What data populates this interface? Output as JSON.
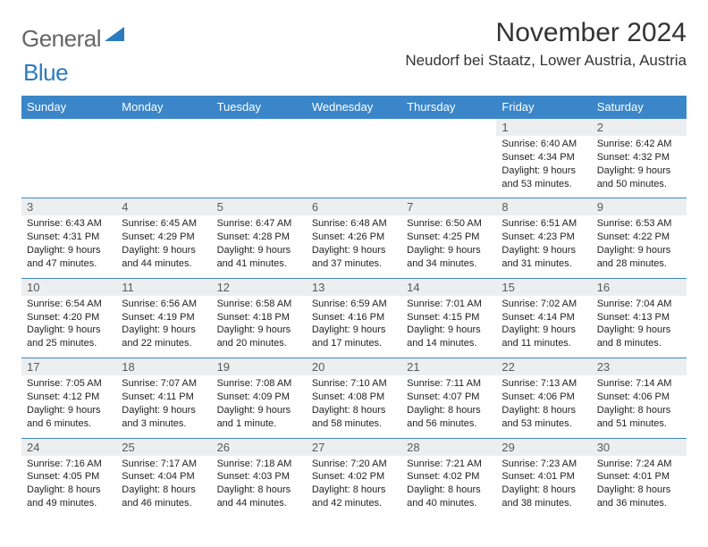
{
  "logo": {
    "text1": "General",
    "text2": "Blue"
  },
  "title": "November 2024",
  "location": "Neudorf bei Staatz, Lower Austria, Austria",
  "colors": {
    "header_bg": "#3a86c8",
    "header_text": "#ffffff",
    "daynum_bg": "#eceef0",
    "daynum_text": "#5a5a5a",
    "border": "#3a86c8",
    "logo_gray": "#666666",
    "logo_blue": "#2a7bbf"
  },
  "day_headers": [
    "Sunday",
    "Monday",
    "Tuesday",
    "Wednesday",
    "Thursday",
    "Friday",
    "Saturday"
  ],
  "weeks": [
    {
      "nums": [
        "",
        "",
        "",
        "",
        "",
        "1",
        "2"
      ],
      "cells": [
        [],
        [],
        [],
        [],
        [],
        [
          "Sunrise: 6:40 AM",
          "Sunset: 4:34 PM",
          "Daylight: 9 hours",
          "and 53 minutes."
        ],
        [
          "Sunrise: 6:42 AM",
          "Sunset: 4:32 PM",
          "Daylight: 9 hours",
          "and 50 minutes."
        ]
      ]
    },
    {
      "nums": [
        "3",
        "4",
        "5",
        "6",
        "7",
        "8",
        "9"
      ],
      "cells": [
        [
          "Sunrise: 6:43 AM",
          "Sunset: 4:31 PM",
          "Daylight: 9 hours",
          "and 47 minutes."
        ],
        [
          "Sunrise: 6:45 AM",
          "Sunset: 4:29 PM",
          "Daylight: 9 hours",
          "and 44 minutes."
        ],
        [
          "Sunrise: 6:47 AM",
          "Sunset: 4:28 PM",
          "Daylight: 9 hours",
          "and 41 minutes."
        ],
        [
          "Sunrise: 6:48 AM",
          "Sunset: 4:26 PM",
          "Daylight: 9 hours",
          "and 37 minutes."
        ],
        [
          "Sunrise: 6:50 AM",
          "Sunset: 4:25 PM",
          "Daylight: 9 hours",
          "and 34 minutes."
        ],
        [
          "Sunrise: 6:51 AM",
          "Sunset: 4:23 PM",
          "Daylight: 9 hours",
          "and 31 minutes."
        ],
        [
          "Sunrise: 6:53 AM",
          "Sunset: 4:22 PM",
          "Daylight: 9 hours",
          "and 28 minutes."
        ]
      ]
    },
    {
      "nums": [
        "10",
        "11",
        "12",
        "13",
        "14",
        "15",
        "16"
      ],
      "cells": [
        [
          "Sunrise: 6:54 AM",
          "Sunset: 4:20 PM",
          "Daylight: 9 hours",
          "and 25 minutes."
        ],
        [
          "Sunrise: 6:56 AM",
          "Sunset: 4:19 PM",
          "Daylight: 9 hours",
          "and 22 minutes."
        ],
        [
          "Sunrise: 6:58 AM",
          "Sunset: 4:18 PM",
          "Daylight: 9 hours",
          "and 20 minutes."
        ],
        [
          "Sunrise: 6:59 AM",
          "Sunset: 4:16 PM",
          "Daylight: 9 hours",
          "and 17 minutes."
        ],
        [
          "Sunrise: 7:01 AM",
          "Sunset: 4:15 PM",
          "Daylight: 9 hours",
          "and 14 minutes."
        ],
        [
          "Sunrise: 7:02 AM",
          "Sunset: 4:14 PM",
          "Daylight: 9 hours",
          "and 11 minutes."
        ],
        [
          "Sunrise: 7:04 AM",
          "Sunset: 4:13 PM",
          "Daylight: 9 hours",
          "and 8 minutes."
        ]
      ]
    },
    {
      "nums": [
        "17",
        "18",
        "19",
        "20",
        "21",
        "22",
        "23"
      ],
      "cells": [
        [
          "Sunrise: 7:05 AM",
          "Sunset: 4:12 PM",
          "Daylight: 9 hours",
          "and 6 minutes."
        ],
        [
          "Sunrise: 7:07 AM",
          "Sunset: 4:11 PM",
          "Daylight: 9 hours",
          "and 3 minutes."
        ],
        [
          "Sunrise: 7:08 AM",
          "Sunset: 4:09 PM",
          "Daylight: 9 hours",
          "and 1 minute."
        ],
        [
          "Sunrise: 7:10 AM",
          "Sunset: 4:08 PM",
          "Daylight: 8 hours",
          "and 58 minutes."
        ],
        [
          "Sunrise: 7:11 AM",
          "Sunset: 4:07 PM",
          "Daylight: 8 hours",
          "and 56 minutes."
        ],
        [
          "Sunrise: 7:13 AM",
          "Sunset: 4:06 PM",
          "Daylight: 8 hours",
          "and 53 minutes."
        ],
        [
          "Sunrise: 7:14 AM",
          "Sunset: 4:06 PM",
          "Daylight: 8 hours",
          "and 51 minutes."
        ]
      ]
    },
    {
      "nums": [
        "24",
        "25",
        "26",
        "27",
        "28",
        "29",
        "30"
      ],
      "cells": [
        [
          "Sunrise: 7:16 AM",
          "Sunset: 4:05 PM",
          "Daylight: 8 hours",
          "and 49 minutes."
        ],
        [
          "Sunrise: 7:17 AM",
          "Sunset: 4:04 PM",
          "Daylight: 8 hours",
          "and 46 minutes."
        ],
        [
          "Sunrise: 7:18 AM",
          "Sunset: 4:03 PM",
          "Daylight: 8 hours",
          "and 44 minutes."
        ],
        [
          "Sunrise: 7:20 AM",
          "Sunset: 4:02 PM",
          "Daylight: 8 hours",
          "and 42 minutes."
        ],
        [
          "Sunrise: 7:21 AM",
          "Sunset: 4:02 PM",
          "Daylight: 8 hours",
          "and 40 minutes."
        ],
        [
          "Sunrise: 7:23 AM",
          "Sunset: 4:01 PM",
          "Daylight: 8 hours",
          "and 38 minutes."
        ],
        [
          "Sunrise: 7:24 AM",
          "Sunset: 4:01 PM",
          "Daylight: 8 hours",
          "and 36 minutes."
        ]
      ]
    }
  ]
}
